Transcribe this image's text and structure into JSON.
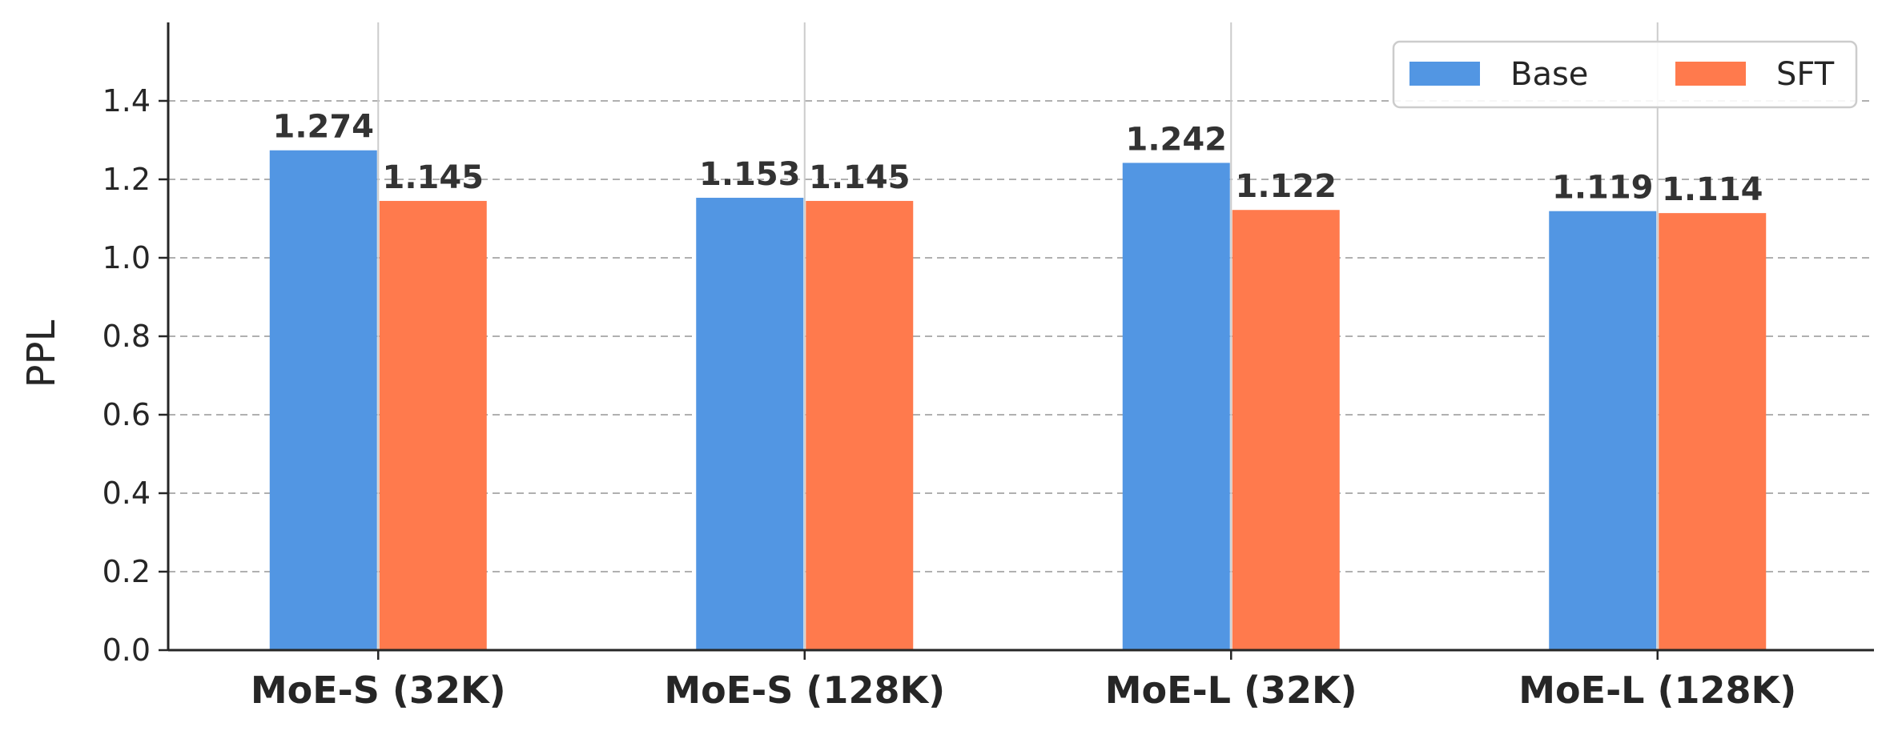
{
  "chart_data": {
    "type": "bar",
    "title": "",
    "xlabel": "",
    "ylabel": "PPL",
    "categories": [
      "MoE-S (32K)",
      "MoE-S (128K)",
      "MoE-L (32K)",
      "MoE-L (128K)"
    ],
    "series": [
      {
        "name": "Base",
        "color": "#5296E3",
        "values": [
          1.274,
          1.153,
          1.242,
          1.119
        ],
        "labels": [
          "1.274",
          "1.153",
          "1.242",
          "1.119"
        ]
      },
      {
        "name": "SFT",
        "color": "#FF7A4D",
        "values": [
          1.145,
          1.145,
          1.122,
          1.114
        ],
        "labels": [
          "1.145",
          "1.145",
          "1.122",
          "1.114"
        ]
      }
    ],
    "ylim": [
      0,
      1.6
    ],
    "yticks": [
      "0.0",
      "0.2",
      "0.4",
      "0.6",
      "0.8",
      "1.0",
      "1.2",
      "1.4"
    ],
    "grid": "horizontal dashed",
    "legend_position": "top-right"
  }
}
